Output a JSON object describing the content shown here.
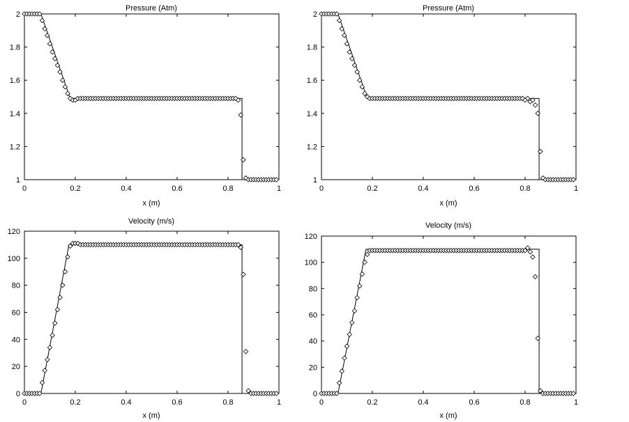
{
  "charts": [
    {
      "title": "Pressure (Atm)",
      "xlabel": "x (m)",
      "x_ticks": [
        "0",
        "0.2",
        "0.4",
        "0.6",
        "0.8",
        "1"
      ],
      "y_ticks": [
        "1",
        "1.2",
        "1.4",
        "1.6",
        "1.8",
        "2"
      ]
    },
    {
      "title": "Pressure (Atm)",
      "xlabel": "x (m)",
      "x_ticks": [
        "0",
        "0.2",
        "0.4",
        "0.6",
        "0.8",
        "1"
      ],
      "y_ticks": [
        "1",
        "1.2",
        "1.4",
        "1.6",
        "1.8",
        "2"
      ]
    },
    {
      "title": "Velocity (m/s)",
      "xlabel": "x (m)",
      "x_ticks": [
        "0",
        "0.2",
        "0.4",
        "0.6",
        "0.8",
        "1"
      ],
      "y_ticks": [
        "0",
        "20",
        "40",
        "60",
        "80",
        "100",
        "120"
      ]
    },
    {
      "title": "Velocity (m/s)",
      "xlabel": "x (m)",
      "x_ticks": [
        "0",
        "0.2",
        "0.4",
        "0.6",
        "0.8",
        "1"
      ],
      "y_ticks": [
        "0",
        "20",
        "40",
        "60",
        "80",
        "100",
        "120"
      ]
    }
  ],
  "chart_data": [
    {
      "type": "line",
      "title": "Pressure (Atm)",
      "xlabel": "x (m)",
      "ylabel": "",
      "xlim": [
        0,
        1
      ],
      "ylim": [
        1,
        2
      ],
      "grid": false,
      "line_series": {
        "x": [
          0,
          0.065,
          0.18,
          0.855,
          0.855,
          1
        ],
        "y": [
          2,
          2,
          1.49,
          1.49,
          1,
          1
        ]
      },
      "marker_series": {
        "marker": "diamond",
        "x": [
          0.0,
          0.01,
          0.02,
          0.03,
          0.04,
          0.05,
          0.06,
          0.07,
          0.08,
          0.09,
          0.1,
          0.11,
          0.12,
          0.13,
          0.14,
          0.15,
          0.16,
          0.17,
          0.18,
          0.19,
          0.2,
          0.21,
          0.22,
          0.23,
          0.24,
          0.25,
          0.26,
          0.27,
          0.28,
          0.29,
          0.3,
          0.31,
          0.32,
          0.33,
          0.34,
          0.35,
          0.36,
          0.37,
          0.38,
          0.39,
          0.4,
          0.41,
          0.42,
          0.43,
          0.44,
          0.45,
          0.46,
          0.47,
          0.48,
          0.49,
          0.5,
          0.51,
          0.52,
          0.53,
          0.54,
          0.55,
          0.56,
          0.57,
          0.58,
          0.59,
          0.6,
          0.61,
          0.62,
          0.63,
          0.64,
          0.65,
          0.66,
          0.67,
          0.68,
          0.69,
          0.7,
          0.71,
          0.72,
          0.73,
          0.74,
          0.75,
          0.76,
          0.77,
          0.78,
          0.79,
          0.8,
          0.81,
          0.82,
          0.83,
          0.84,
          0.85,
          0.86,
          0.87,
          0.88,
          0.89,
          0.9,
          0.91,
          0.92,
          0.93,
          0.94,
          0.95,
          0.96,
          0.97,
          0.98,
          0.99
        ],
        "y": [
          2.0,
          2.0,
          2.0,
          2.0,
          2.0,
          2.0,
          2.0,
          1.96,
          1.91,
          1.87,
          1.82,
          1.77,
          1.73,
          1.69,
          1.65,
          1.6,
          1.56,
          1.52,
          1.49,
          1.48,
          1.48,
          1.49,
          1.49,
          1.49,
          1.49,
          1.49,
          1.49,
          1.49,
          1.49,
          1.49,
          1.49,
          1.49,
          1.49,
          1.49,
          1.49,
          1.49,
          1.49,
          1.49,
          1.49,
          1.49,
          1.49,
          1.49,
          1.49,
          1.49,
          1.49,
          1.49,
          1.49,
          1.49,
          1.49,
          1.49,
          1.49,
          1.49,
          1.49,
          1.49,
          1.49,
          1.49,
          1.49,
          1.49,
          1.49,
          1.49,
          1.49,
          1.49,
          1.49,
          1.49,
          1.49,
          1.49,
          1.49,
          1.49,
          1.49,
          1.49,
          1.49,
          1.49,
          1.49,
          1.49,
          1.49,
          1.49,
          1.49,
          1.49,
          1.49,
          1.49,
          1.49,
          1.49,
          1.49,
          1.49,
          1.48,
          1.39,
          1.12,
          1.01,
          1.0,
          1.0,
          1.0,
          1.0,
          1.0,
          1.0,
          1.0,
          1.0,
          1.0,
          1.0,
          1.0,
          1.0
        ]
      }
    },
    {
      "type": "line",
      "title": "Pressure (Atm)",
      "xlabel": "x (m)",
      "ylabel": "",
      "xlim": [
        0,
        1
      ],
      "ylim": [
        1,
        2
      ],
      "grid": false,
      "line_series": {
        "x": [
          0,
          0.065,
          0.18,
          0.855,
          0.855,
          1
        ],
        "y": [
          2,
          2,
          1.49,
          1.49,
          1,
          1
        ]
      },
      "marker_series": {
        "marker": "diamond",
        "x": [
          0.0,
          0.01,
          0.02,
          0.03,
          0.04,
          0.05,
          0.06,
          0.07,
          0.08,
          0.09,
          0.1,
          0.11,
          0.12,
          0.13,
          0.14,
          0.15,
          0.16,
          0.17,
          0.18,
          0.19,
          0.2,
          0.21,
          0.22,
          0.23,
          0.24,
          0.25,
          0.26,
          0.27,
          0.28,
          0.29,
          0.3,
          0.31,
          0.32,
          0.33,
          0.34,
          0.35,
          0.36,
          0.37,
          0.38,
          0.39,
          0.4,
          0.41,
          0.42,
          0.43,
          0.44,
          0.45,
          0.46,
          0.47,
          0.48,
          0.49,
          0.5,
          0.51,
          0.52,
          0.53,
          0.54,
          0.55,
          0.56,
          0.57,
          0.58,
          0.59,
          0.6,
          0.61,
          0.62,
          0.63,
          0.64,
          0.65,
          0.66,
          0.67,
          0.68,
          0.69,
          0.7,
          0.71,
          0.72,
          0.73,
          0.74,
          0.75,
          0.76,
          0.77,
          0.78,
          0.79,
          0.8,
          0.81,
          0.82,
          0.83,
          0.84,
          0.85,
          0.86,
          0.87,
          0.88,
          0.89,
          0.9,
          0.91,
          0.92,
          0.93,
          0.94,
          0.95,
          0.96,
          0.97,
          0.98,
          0.99
        ],
        "y": [
          2.0,
          2.0,
          2.0,
          2.0,
          2.0,
          2.0,
          2.0,
          1.96,
          1.91,
          1.87,
          1.82,
          1.77,
          1.73,
          1.69,
          1.65,
          1.6,
          1.56,
          1.52,
          1.5,
          1.49,
          1.49,
          1.49,
          1.49,
          1.49,
          1.49,
          1.49,
          1.49,
          1.49,
          1.49,
          1.49,
          1.49,
          1.49,
          1.49,
          1.49,
          1.49,
          1.49,
          1.49,
          1.49,
          1.49,
          1.49,
          1.49,
          1.49,
          1.49,
          1.49,
          1.49,
          1.49,
          1.49,
          1.49,
          1.49,
          1.49,
          1.49,
          1.49,
          1.49,
          1.49,
          1.49,
          1.49,
          1.49,
          1.49,
          1.49,
          1.49,
          1.49,
          1.49,
          1.49,
          1.49,
          1.49,
          1.49,
          1.49,
          1.49,
          1.49,
          1.49,
          1.49,
          1.49,
          1.49,
          1.49,
          1.49,
          1.49,
          1.49,
          1.49,
          1.49,
          1.49,
          1.48,
          1.49,
          1.47,
          1.48,
          1.45,
          1.4,
          1.17,
          1.01,
          1.0,
          1.0,
          1.0,
          1.0,
          1.0,
          1.0,
          1.0,
          1.0,
          1.0,
          1.0,
          1.0,
          1.0
        ]
      }
    },
    {
      "type": "line",
      "title": "Velocity (m/s)",
      "xlabel": "x (m)",
      "ylabel": "",
      "xlim": [
        0,
        1
      ],
      "ylim": [
        0,
        120
      ],
      "grid": false,
      "line_series": {
        "x": [
          0,
          0.065,
          0.175,
          0.855,
          0.855,
          1
        ],
        "y": [
          0,
          0,
          110,
          110,
          0,
          0
        ]
      },
      "marker_series": {
        "marker": "diamond",
        "x": [
          0.0,
          0.01,
          0.02,
          0.03,
          0.04,
          0.05,
          0.06,
          0.07,
          0.08,
          0.09,
          0.1,
          0.11,
          0.12,
          0.13,
          0.14,
          0.15,
          0.16,
          0.17,
          0.18,
          0.19,
          0.2,
          0.21,
          0.22,
          0.23,
          0.24,
          0.25,
          0.26,
          0.27,
          0.28,
          0.29,
          0.3,
          0.31,
          0.32,
          0.33,
          0.34,
          0.35,
          0.36,
          0.37,
          0.38,
          0.39,
          0.4,
          0.41,
          0.42,
          0.43,
          0.44,
          0.45,
          0.46,
          0.47,
          0.48,
          0.49,
          0.5,
          0.51,
          0.52,
          0.53,
          0.54,
          0.55,
          0.56,
          0.57,
          0.58,
          0.59,
          0.6,
          0.61,
          0.62,
          0.63,
          0.64,
          0.65,
          0.66,
          0.67,
          0.68,
          0.69,
          0.7,
          0.71,
          0.72,
          0.73,
          0.74,
          0.75,
          0.76,
          0.77,
          0.78,
          0.79,
          0.8,
          0.81,
          0.82,
          0.83,
          0.84,
          0.85,
          0.86,
          0.87,
          0.88,
          0.89,
          0.9,
          0.91,
          0.92,
          0.93,
          0.94,
          0.95,
          0.96,
          0.97,
          0.98,
          0.99
        ],
        "y": [
          0,
          0,
          0,
          0,
          0,
          0,
          0,
          8,
          17,
          25,
          34,
          43,
          52,
          62,
          71,
          80,
          90,
          101,
          109,
          111,
          111,
          111,
          110,
          110,
          110,
          110,
          110,
          110,
          110,
          110,
          110,
          110,
          110,
          110,
          110,
          110,
          110,
          110,
          110,
          110,
          110,
          110,
          110,
          110,
          110,
          110,
          110,
          110,
          110,
          110,
          110,
          110,
          110,
          110,
          110,
          110,
          110,
          110,
          110,
          110,
          110,
          110,
          110,
          110,
          110,
          110,
          110,
          110,
          110,
          110,
          110,
          110,
          110,
          110,
          110,
          110,
          110,
          110,
          110,
          110,
          110,
          110,
          110,
          110,
          110,
          108,
          88,
          31,
          2,
          0,
          0,
          0,
          0,
          0,
          0,
          0,
          0,
          0,
          0,
          0
        ]
      }
    },
    {
      "type": "line",
      "title": "Velocity (m/s)",
      "xlabel": "x (m)",
      "ylabel": "",
      "xlim": [
        0,
        1
      ],
      "ylim": [
        0,
        120
      ],
      "grid": false,
      "line_series": {
        "x": [
          0,
          0.065,
          0.175,
          0.855,
          0.855,
          1
        ],
        "y": [
          0,
          0,
          110,
          110,
          0,
          0
        ]
      },
      "marker_series": {
        "marker": "diamond",
        "x": [
          0.0,
          0.01,
          0.02,
          0.03,
          0.04,
          0.05,
          0.06,
          0.07,
          0.08,
          0.09,
          0.1,
          0.11,
          0.12,
          0.13,
          0.14,
          0.15,
          0.16,
          0.17,
          0.18,
          0.19,
          0.2,
          0.21,
          0.22,
          0.23,
          0.24,
          0.25,
          0.26,
          0.27,
          0.28,
          0.29,
          0.3,
          0.31,
          0.32,
          0.33,
          0.34,
          0.35,
          0.36,
          0.37,
          0.38,
          0.39,
          0.4,
          0.41,
          0.42,
          0.43,
          0.44,
          0.45,
          0.46,
          0.47,
          0.48,
          0.49,
          0.5,
          0.51,
          0.52,
          0.53,
          0.54,
          0.55,
          0.56,
          0.57,
          0.58,
          0.59,
          0.6,
          0.61,
          0.62,
          0.63,
          0.64,
          0.65,
          0.66,
          0.67,
          0.68,
          0.69,
          0.7,
          0.71,
          0.72,
          0.73,
          0.74,
          0.75,
          0.76,
          0.77,
          0.78,
          0.79,
          0.8,
          0.81,
          0.82,
          0.83,
          0.84,
          0.85,
          0.86,
          0.87,
          0.88,
          0.89,
          0.9,
          0.91,
          0.92,
          0.93,
          0.94,
          0.95,
          0.96,
          0.97,
          0.98,
          0.99
        ],
        "y": [
          0,
          0,
          0,
          0,
          0,
          0,
          0,
          8,
          17,
          27,
          36,
          45,
          54,
          63,
          73,
          82,
          91,
          100,
          106,
          109,
          109,
          109,
          109,
          109,
          109,
          109,
          109,
          109,
          109,
          109,
          109,
          109,
          109,
          109,
          109,
          109,
          109,
          109,
          109,
          109,
          109,
          109,
          109,
          109,
          109,
          109,
          109,
          109,
          109,
          109,
          109,
          109,
          109,
          109,
          109,
          109,
          109,
          109,
          109,
          109,
          109,
          109,
          109,
          109,
          109,
          109,
          109,
          109,
          109,
          109,
          109,
          109,
          109,
          109,
          109,
          109,
          109,
          109,
          109,
          109,
          109,
          111,
          108,
          104,
          89,
          42,
          2,
          0,
          0,
          0,
          0,
          0,
          0,
          0,
          0,
          0,
          0,
          0,
          0,
          0
        ]
      }
    }
  ]
}
